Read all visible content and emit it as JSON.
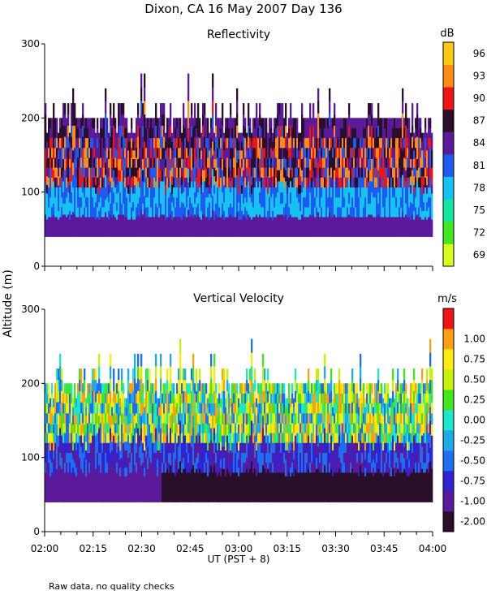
{
  "figure": {
    "title": "Dixon, CA 16 May 2007  Day 136",
    "shared_ylabel": "Altitude (m)",
    "xlabel": "UT  (PST + 8)",
    "footnote": "Raw data, no quality checks"
  },
  "colors": {
    "reflectivity_scale": [
      "#d7ff1e",
      "#41e61e",
      "#12e6a0",
      "#16c2f2",
      "#1e5af0",
      "#5a1a9a",
      "#2a0f2a",
      "#f01414",
      "#ff8c14",
      "#ffc814"
    ],
    "velocity_scale": [
      "#2a0f2a",
      "#5a1a9a",
      "#3223d2",
      "#1e6ef0",
      "#1eaae6",
      "#1ee6c8",
      "#41e61e",
      "#c8f00a",
      "#ffeb14",
      "#ffa014",
      "#f01414"
    ]
  },
  "chart_data": [
    {
      "type": "heatmap",
      "title": "Reflectivity",
      "ylabel": "Altitude (m)",
      "xlabel": "UT  (PST + 8)",
      "x_tick_labels": [
        "02:00",
        "02:15",
        "02:30",
        "02:45",
        "03:00",
        "03:15",
        "03:30",
        "03:45",
        "04:00"
      ],
      "xlim": [
        "02:00",
        "04:00"
      ],
      "y_ticks": [
        0,
        100,
        200,
        300
      ],
      "ylim": [
        0,
        300
      ],
      "data_altitude_range": [
        40,
        260
      ],
      "colorbar": {
        "unit": "dB",
        "tick_labels": [
          "69",
          "72",
          "75",
          "78",
          "81",
          "84",
          "87",
          "90",
          "93",
          "96"
        ],
        "range": [
          67.5,
          97.5
        ]
      }
    },
    {
      "type": "heatmap",
      "title": "Vertical Velocity",
      "ylabel": "Altitude (m)",
      "xlabel": "UT  (PST + 8)",
      "x_tick_labels": [
        "02:00",
        "02:15",
        "02:30",
        "02:45",
        "03:00",
        "03:15",
        "03:30",
        "03:45",
        "04:00"
      ],
      "xlim": [
        "02:00",
        "04:00"
      ],
      "y_ticks": [
        0,
        100,
        200,
        300
      ],
      "ylim": [
        0,
        300
      ],
      "data_altitude_range": [
        40,
        260
      ],
      "colorbar": {
        "unit": "m/s",
        "tick_labels": [
          "-2.00",
          "-1.00",
          "-0.75",
          "-0.50",
          "-0.25",
          "0.00",
          "0.25",
          "0.50",
          "0.75",
          "1.00"
        ]
      }
    }
  ]
}
